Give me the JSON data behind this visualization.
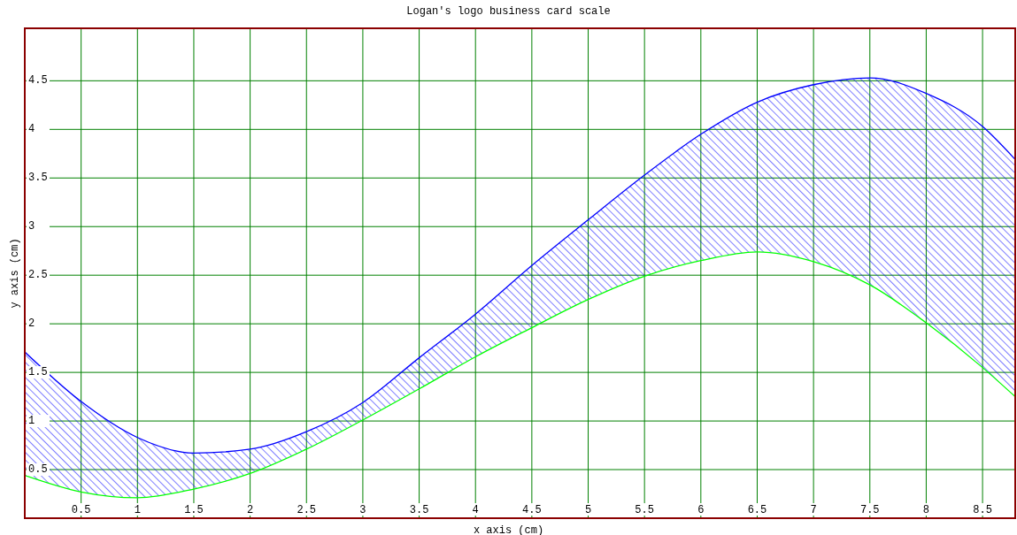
{
  "chart_data": {
    "type": "line",
    "title": "Logan's logo business card scale",
    "xlabel": "x axis (cm)",
    "ylabel": "y axis (cm)",
    "x": [
      0,
      0.5,
      1,
      1.5,
      2,
      2.5,
      3,
      3.5,
      4,
      4.5,
      5,
      5.5,
      6,
      6.5,
      7,
      7.5,
      8,
      8.5,
      8.79
    ],
    "series": [
      {
        "color": "#0000ff",
        "values": [
          1.71,
          1.2,
          0.83,
          0.67,
          0.71,
          0.89,
          1.19,
          1.65,
          2.1,
          2.6,
          3.07,
          3.53,
          3.95,
          4.28,
          4.46,
          4.53,
          4.37,
          4.03,
          3.69
        ],
        "lower": [
          0.44,
          0.27,
          0.21,
          0.3,
          0.46,
          0.71,
          1.01,
          1.33,
          1.66,
          1.96,
          2.25,
          2.49,
          2.65,
          2.74,
          2.64,
          2.4,
          2.01,
          1.55,
          1.25
        ],
        "upper": [
          1.71,
          1.2,
          0.83,
          0.67,
          0.71,
          0.89,
          1.19,
          1.65,
          2.1,
          2.6,
          3.07,
          3.53,
          3.95,
          4.28,
          4.46,
          4.53,
          4.37,
          4.03,
          3.69
        ]
      },
      {
        "color": "#00ff00",
        "values": [
          0.44,
          0.27,
          0.21,
          0.3,
          0.46,
          0.71,
          1.01,
          1.33,
          1.66,
          1.96,
          2.25,
          2.49,
          2.65,
          2.74,
          2.64,
          2.4,
          2.01,
          1.55,
          1.25
        ]
      }
    ],
    "xlim": [
      0,
      8.79
    ],
    "ylim": [
      0,
      5.04
    ],
    "xticks": [
      0.5,
      1,
      1.5,
      2,
      2.5,
      3,
      3.5,
      4,
      4.5,
      5,
      5.5,
      6,
      6.5,
      7,
      7.5,
      8,
      8.5
    ],
    "yticks": [
      0.5,
      1,
      1.5,
      2,
      2.5,
      3,
      3.5,
      4,
      4.5
    ],
    "grid": true,
    "marker": "none",
    "line_style": "solid"
  }
}
